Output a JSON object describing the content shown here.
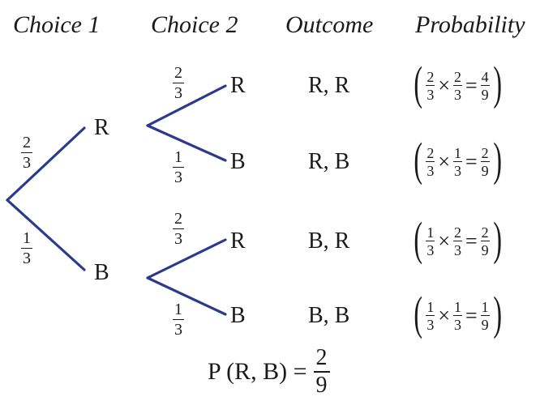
{
  "headers": {
    "choice1": "Choice 1",
    "choice2": "Choice 2",
    "outcome": "Outcome",
    "probability": "Probability"
  },
  "first_level": {
    "top_node": "R",
    "bottom_node": "B",
    "top_branch": {
      "num": "2",
      "den": "3"
    },
    "bottom_branch": {
      "num": "1",
      "den": "3"
    }
  },
  "second_level": [
    {
      "node": "R",
      "branch": {
        "num": "2",
        "den": "3"
      }
    },
    {
      "node": "B",
      "branch": {
        "num": "1",
        "den": "3"
      }
    },
    {
      "node": "R",
      "branch": {
        "num": "2",
        "den": "3"
      }
    },
    {
      "node": "B",
      "branch": {
        "num": "1",
        "den": "3"
      }
    }
  ],
  "outcomes": [
    "R, R",
    "R, B",
    "B, R",
    "B, B"
  ],
  "probabilities": [
    {
      "a": {
        "num": "2",
        "den": "3"
      },
      "b": {
        "num": "2",
        "den": "3"
      },
      "r": {
        "num": "4",
        "den": "9"
      }
    },
    {
      "a": {
        "num": "2",
        "den": "3"
      },
      "b": {
        "num": "1",
        "den": "3"
      },
      "r": {
        "num": "2",
        "den": "9"
      }
    },
    {
      "a": {
        "num": "1",
        "den": "3"
      },
      "b": {
        "num": "2",
        "den": "3"
      },
      "r": {
        "num": "2",
        "den": "9"
      }
    },
    {
      "a": {
        "num": "1",
        "den": "3"
      },
      "b": {
        "num": "1",
        "den": "3"
      },
      "r": {
        "num": "1",
        "den": "9"
      }
    }
  ],
  "symbols": {
    "times": "×",
    "equals": "=",
    "lparen": "(",
    "rparen": ")"
  },
  "final": {
    "expression": "P (R, B) =",
    "num": "2",
    "den": "9"
  },
  "colors": {
    "branch": "#2b3a8c",
    "text": "#1a1a1a"
  }
}
